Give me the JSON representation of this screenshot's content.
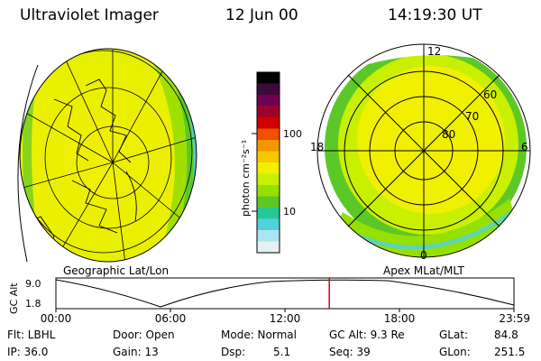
{
  "header": {
    "title": "Ultraviolet Imager",
    "date": "12 Jun 00",
    "time": "14:19:30 UT"
  },
  "left_panel": {
    "caption": "Geographic Lat/Lon"
  },
  "right_panel": {
    "caption": "Apex MLat/MLT",
    "mlt_labels": [
      "12",
      "18",
      "6",
      "0"
    ],
    "mlat_labels": [
      "60",
      "70",
      "80"
    ]
  },
  "colorbar": {
    "unit_label": "photon cm⁻²s⁻¹",
    "tick_labels": [
      "100",
      "10"
    ],
    "colors": [
      "#000000",
      "#3c0a3c",
      "#6e0050",
      "#a00028",
      "#d20000",
      "#f05000",
      "#f59600",
      "#f5c800",
      "#f0f000",
      "#c8f000",
      "#96e000",
      "#5cc828",
      "#28c896",
      "#50d2dc",
      "#aae6f0",
      "#e6f0f5"
    ]
  },
  "timeline": {
    "y_axis_title": "GC Alt",
    "y_ticks": [
      "9.0",
      "1.8"
    ],
    "x_ticks": [
      "00:00",
      "06:00",
      "12:00",
      "18:00",
      "23:59"
    ],
    "current_time_marker_hours": 14.325
  },
  "info": {
    "filter": "Flt: LBHL",
    "ip": "IP: 36.0",
    "door": "Door: Open",
    "gain": "Gain: 13",
    "mode": "Mode: Normal",
    "dsp_label": "Dsp:",
    "dsp_value": "5.1",
    "gc_alt": "GC Alt: 9.3 Re",
    "seq": "Seq: 39",
    "glat_label": "GLat:",
    "glat_value": "84.8",
    "glon_label": "GLon:",
    "glon_value": "251.5"
  }
}
